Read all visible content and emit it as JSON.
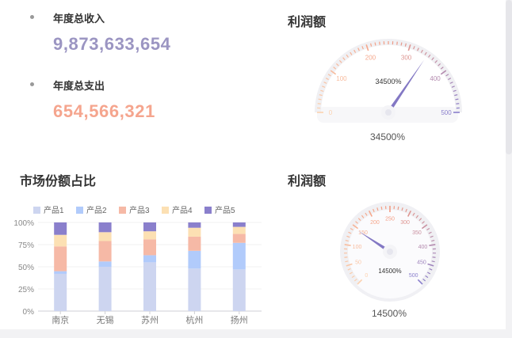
{
  "stats": {
    "income_label": "年度总收入",
    "income_value": "9,873,633,654",
    "expense_label": "年度总支出",
    "expense_value": "654,566,321"
  },
  "colors": {
    "income": "#9b95c2",
    "expense": "#f5a58e",
    "gauge_needle": "#8378c4",
    "products": [
      "#cdd5f0",
      "#b1cbfb",
      "#f6b9a6",
      "#fce0b3",
      "#8a7fcc"
    ]
  },
  "gauge1": {
    "title": "利润额",
    "center_label": "34500%",
    "caption": "34500%",
    "ticks": [
      "0",
      "100",
      "200",
      "300",
      "400",
      "500"
    ]
  },
  "gauge2": {
    "title": "利润额",
    "center_label": "14500%",
    "caption": "14500%",
    "ticks": [
      "0",
      "50",
      "100",
      "150",
      "200",
      "250",
      "300",
      "350",
      "400",
      "450",
      "500"
    ]
  },
  "chart_data": [
    {
      "type": "gauge",
      "min": 0,
      "max": 500,
      "value": 345,
      "tick_labels": [
        "0",
        "100",
        "200",
        "300",
        "400",
        "500"
      ],
      "detail": "34500%"
    },
    {
      "type": "bar",
      "stacked": "percent",
      "title": "市场份额占比",
      "categories": [
        "南京",
        "无锡",
        "苏州",
        "杭州",
        "扬州"
      ],
      "series": [
        {
          "name": "产品1",
          "values": [
            42,
            50,
            55,
            48,
            47
          ]
        },
        {
          "name": "产品2",
          "values": [
            3,
            6,
            8,
            20,
            30
          ]
        },
        {
          "name": "产品3",
          "values": [
            28,
            23,
            18,
            16,
            10
          ]
        },
        {
          "name": "产品4",
          "values": [
            13,
            10,
            9,
            10,
            8
          ]
        },
        {
          "name": "产品5",
          "values": [
            14,
            11,
            10,
            6,
            5
          ]
        }
      ],
      "y_ticks": [
        "0%",
        "25%",
        "50%",
        "75%",
        "100%"
      ],
      "ylim": [
        0,
        100
      ],
      "legend": "top"
    },
    {
      "type": "gauge",
      "min": 0,
      "max": 500,
      "value": 145,
      "tick_labels": [
        "0",
        "50",
        "100",
        "150",
        "200",
        "250",
        "300",
        "350",
        "400",
        "450",
        "500"
      ],
      "detail": "14500%"
    }
  ]
}
